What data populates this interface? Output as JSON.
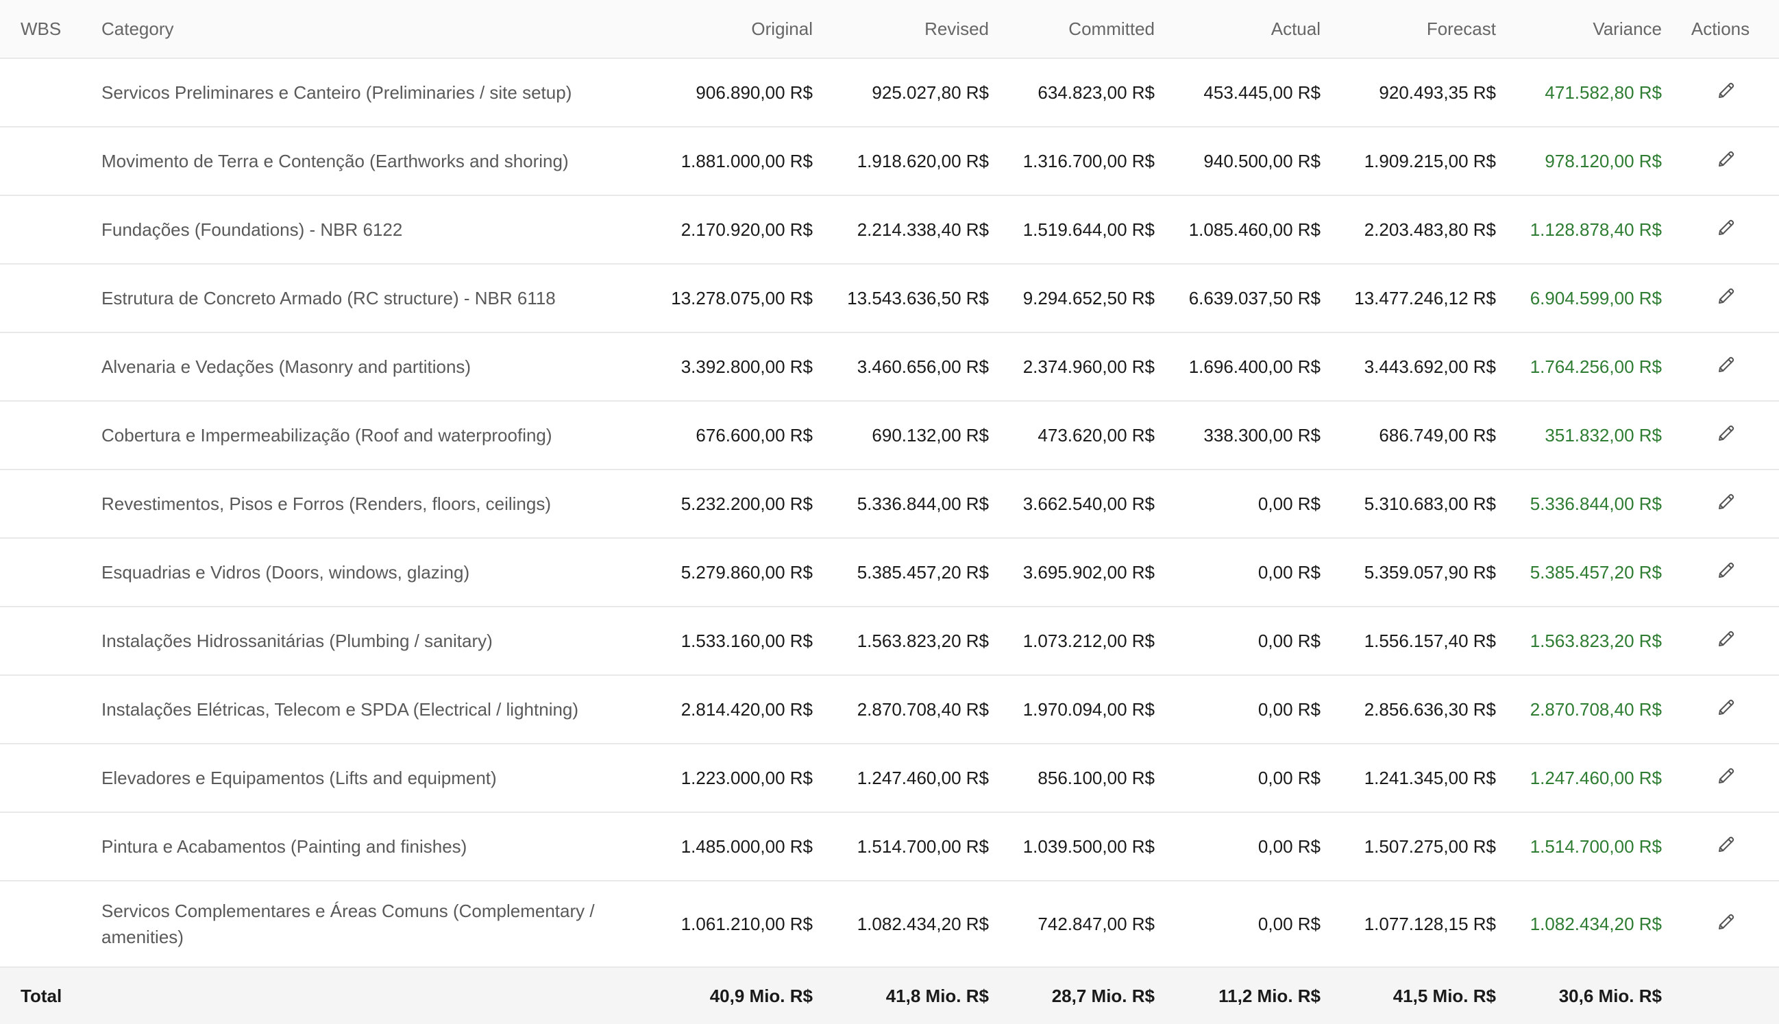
{
  "columns": {
    "wbs": "WBS",
    "category": "Category",
    "original": "Original",
    "revised": "Revised",
    "committed": "Committed",
    "actual": "Actual",
    "forecast": "Forecast",
    "variance": "Variance",
    "actions": "Actions"
  },
  "rows": [
    {
      "category": "Servicos Preliminares e Canteiro (Preliminaries / site setup)",
      "original": "906.890,00 R$",
      "revised": "925.027,80 R$",
      "committed": "634.823,00 R$",
      "actual": "453.445,00 R$",
      "forecast": "920.493,35 R$",
      "variance": "471.582,80 R$"
    },
    {
      "category": "Movimento de Terra e Contenção (Earthworks and shoring)",
      "original": "1.881.000,00 R$",
      "revised": "1.918.620,00 R$",
      "committed": "1.316.700,00 R$",
      "actual": "940.500,00 R$",
      "forecast": "1.909.215,00 R$",
      "variance": "978.120,00 R$"
    },
    {
      "category": "Fundações (Foundations) - NBR 6122",
      "original": "2.170.920,00 R$",
      "revised": "2.214.338,40 R$",
      "committed": "1.519.644,00 R$",
      "actual": "1.085.460,00 R$",
      "forecast": "2.203.483,80 R$",
      "variance": "1.128.878,40 R$"
    },
    {
      "category": "Estrutura de Concreto Armado (RC structure) - NBR 6118",
      "original": "13.278.075,00 R$",
      "revised": "13.543.636,50 R$",
      "committed": "9.294.652,50 R$",
      "actual": "6.639.037,50 R$",
      "forecast": "13.477.246,12 R$",
      "variance": "6.904.599,00 R$"
    },
    {
      "category": "Alvenaria e Vedações (Masonry and partitions)",
      "original": "3.392.800,00 R$",
      "revised": "3.460.656,00 R$",
      "committed": "2.374.960,00 R$",
      "actual": "1.696.400,00 R$",
      "forecast": "3.443.692,00 R$",
      "variance": "1.764.256,00 R$"
    },
    {
      "category": "Cobertura e Impermeabilização (Roof and waterproofing)",
      "original": "676.600,00 R$",
      "revised": "690.132,00 R$",
      "committed": "473.620,00 R$",
      "actual": "338.300,00 R$",
      "forecast": "686.749,00 R$",
      "variance": "351.832,00 R$"
    },
    {
      "category": "Revestimentos, Pisos e Forros (Renders, floors, ceilings)",
      "original": "5.232.200,00 R$",
      "revised": "5.336.844,00 R$",
      "committed": "3.662.540,00 R$",
      "actual": "0,00 R$",
      "forecast": "5.310.683,00 R$",
      "variance": "5.336.844,00 R$"
    },
    {
      "category": "Esquadrias e Vidros (Doors, windows, glazing)",
      "original": "5.279.860,00 R$",
      "revised": "5.385.457,20 R$",
      "committed": "3.695.902,00 R$",
      "actual": "0,00 R$",
      "forecast": "5.359.057,90 R$",
      "variance": "5.385.457,20 R$"
    },
    {
      "category": "Instalações Hidrossanitárias (Plumbing / sanitary)",
      "original": "1.533.160,00 R$",
      "revised": "1.563.823,20 R$",
      "committed": "1.073.212,00 R$",
      "actual": "0,00 R$",
      "forecast": "1.556.157,40 R$",
      "variance": "1.563.823,20 R$"
    },
    {
      "category": "Instalações Elétricas, Telecom e SPDA (Electrical / lightning)",
      "original": "2.814.420,00 R$",
      "revised": "2.870.708,40 R$",
      "committed": "1.970.094,00 R$",
      "actual": "0,00 R$",
      "forecast": "2.856.636,30 R$",
      "variance": "2.870.708,40 R$"
    },
    {
      "category": "Elevadores e Equipamentos (Lifts and equipment)",
      "original": "1.223.000,00 R$",
      "revised": "1.247.460,00 R$",
      "committed": "856.100,00 R$",
      "actual": "0,00 R$",
      "forecast": "1.241.345,00 R$",
      "variance": "1.247.460,00 R$"
    },
    {
      "category": "Pintura e Acabamentos (Painting and finishes)",
      "original": "1.485.000,00 R$",
      "revised": "1.514.700,00 R$",
      "committed": "1.039.500,00 R$",
      "actual": "0,00 R$",
      "forecast": "1.507.275,00 R$",
      "variance": "1.514.700,00 R$"
    },
    {
      "category": "Servicos Complementares e Áreas Comuns (Complementary / amenities)",
      "original": "1.061.210,00 R$",
      "revised": "1.082.434,20 R$",
      "committed": "742.847,00 R$",
      "actual": "0,00 R$",
      "forecast": "1.077.128,15 R$",
      "variance": "1.082.434,20 R$"
    }
  ],
  "totals": {
    "label": "Total",
    "original": "40,9 Mio. R$",
    "revised": "41,8 Mio. R$",
    "committed": "28,7 Mio. R$",
    "actual": "11,2 Mio. R$",
    "forecast": "41,5 Mio. R$",
    "variance": "30,6 Mio. R$"
  },
  "icons": {
    "edit": "pencil-icon"
  },
  "colors": {
    "variance_positive": "#2e7d32",
    "header_bg": "#fafafa",
    "total_bg": "#f5f5f5"
  }
}
